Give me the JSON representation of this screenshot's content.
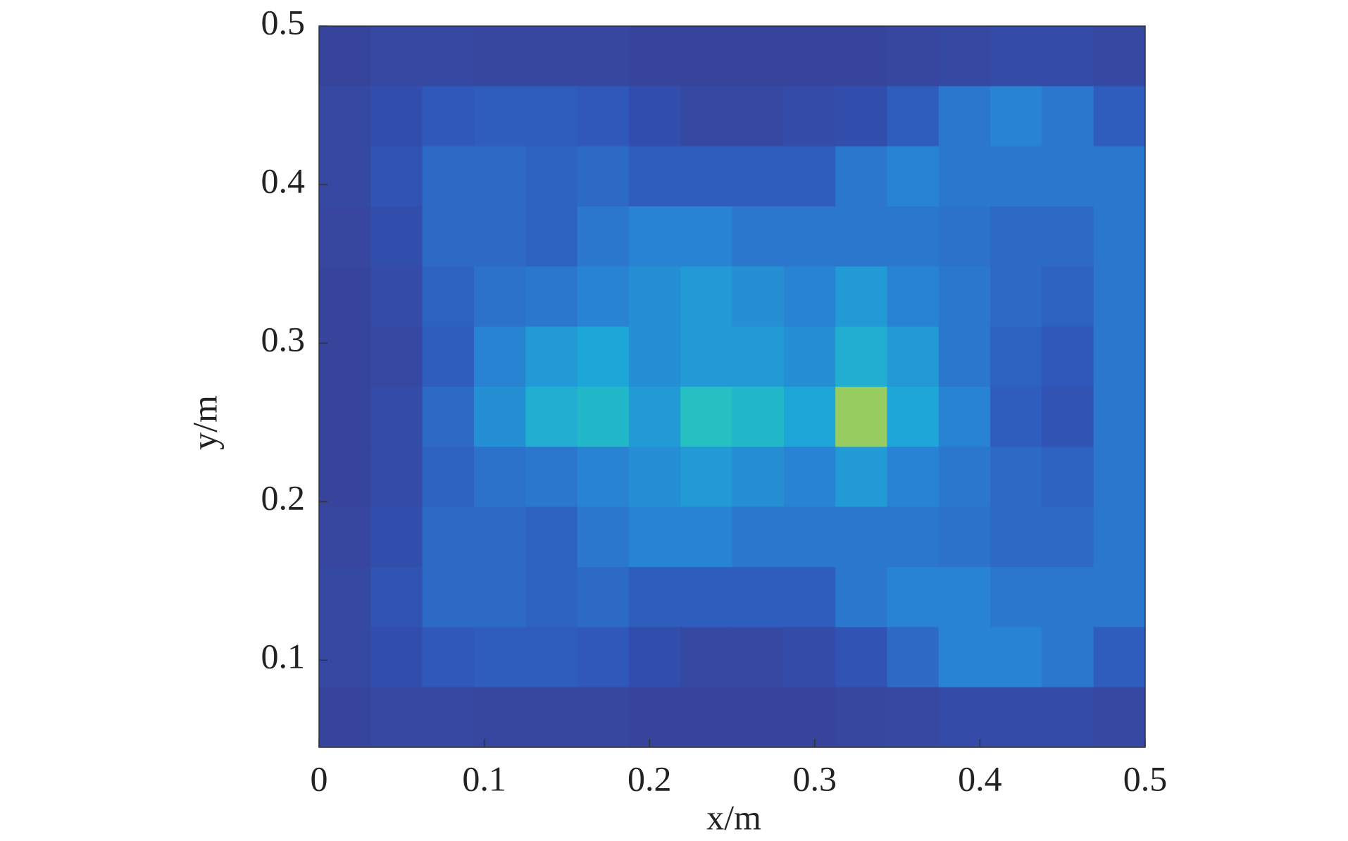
{
  "chart_data": {
    "type": "heatmap",
    "xlabel": "x/m",
    "ylabel": "y/m",
    "xlim": [
      0,
      0.5
    ],
    "ylim": [
      0.045,
      0.5
    ],
    "xticks": [
      0,
      0.1,
      0.2,
      0.3,
      0.4,
      0.5
    ],
    "yticks": [
      0.1,
      0.2,
      0.3,
      0.4,
      0.5
    ],
    "zlim": [
      0,
      1
    ],
    "colormap": [
      "#3b3d8f",
      "#2f55b8",
      "#2a7fd2",
      "#1ea6d8",
      "#27c2c0",
      "#8ccb64",
      "#f5d93a"
    ],
    "z": [
      [
        0.05,
        0.08,
        0.08,
        0.06,
        0.06,
        0.06,
        0.05,
        0.05,
        0.05,
        0.05,
        0.05,
        0.06,
        0.08,
        0.1,
        0.1,
        0.08
      ],
      [
        0.08,
        0.12,
        0.18,
        0.2,
        0.2,
        0.18,
        0.12,
        0.08,
        0.08,
        0.1,
        0.12,
        0.2,
        0.3,
        0.35,
        0.3,
        0.2
      ],
      [
        0.08,
        0.15,
        0.25,
        0.25,
        0.22,
        0.25,
        0.2,
        0.2,
        0.2,
        0.2,
        0.3,
        0.35,
        0.3,
        0.3,
        0.3,
        0.3
      ],
      [
        0.06,
        0.12,
        0.25,
        0.25,
        0.22,
        0.3,
        0.35,
        0.35,
        0.3,
        0.3,
        0.3,
        0.3,
        0.28,
        0.25,
        0.25,
        0.3
      ],
      [
        0.05,
        0.1,
        0.22,
        0.28,
        0.3,
        0.35,
        0.4,
        0.45,
        0.4,
        0.35,
        0.45,
        0.35,
        0.3,
        0.25,
        0.22,
        0.3
      ],
      [
        0.05,
        0.08,
        0.2,
        0.35,
        0.45,
        0.5,
        0.4,
        0.45,
        0.45,
        0.4,
        0.55,
        0.45,
        0.3,
        0.22,
        0.18,
        0.3
      ],
      [
        0.05,
        0.1,
        0.25,
        0.4,
        0.55,
        0.6,
        0.45,
        0.65,
        0.6,
        0.5,
        0.85,
        0.5,
        0.35,
        0.2,
        0.15,
        0.3
      ],
      [
        0.05,
        0.1,
        0.22,
        0.28,
        0.3,
        0.35,
        0.4,
        0.45,
        0.4,
        0.35,
        0.45,
        0.35,
        0.3,
        0.25,
        0.22,
        0.3
      ],
      [
        0.06,
        0.12,
        0.25,
        0.25,
        0.22,
        0.3,
        0.35,
        0.35,
        0.3,
        0.3,
        0.3,
        0.3,
        0.28,
        0.25,
        0.25,
        0.3
      ],
      [
        0.08,
        0.15,
        0.25,
        0.25,
        0.22,
        0.25,
        0.2,
        0.2,
        0.2,
        0.2,
        0.3,
        0.35,
        0.35,
        0.3,
        0.3,
        0.3
      ],
      [
        0.08,
        0.12,
        0.18,
        0.2,
        0.2,
        0.18,
        0.12,
        0.08,
        0.08,
        0.1,
        0.15,
        0.25,
        0.35,
        0.35,
        0.3,
        0.2
      ],
      [
        0.05,
        0.08,
        0.08,
        0.06,
        0.06,
        0.06,
        0.05,
        0.05,
        0.05,
        0.05,
        0.06,
        0.08,
        0.1,
        0.1,
        0.1,
        0.08
      ]
    ]
  }
}
